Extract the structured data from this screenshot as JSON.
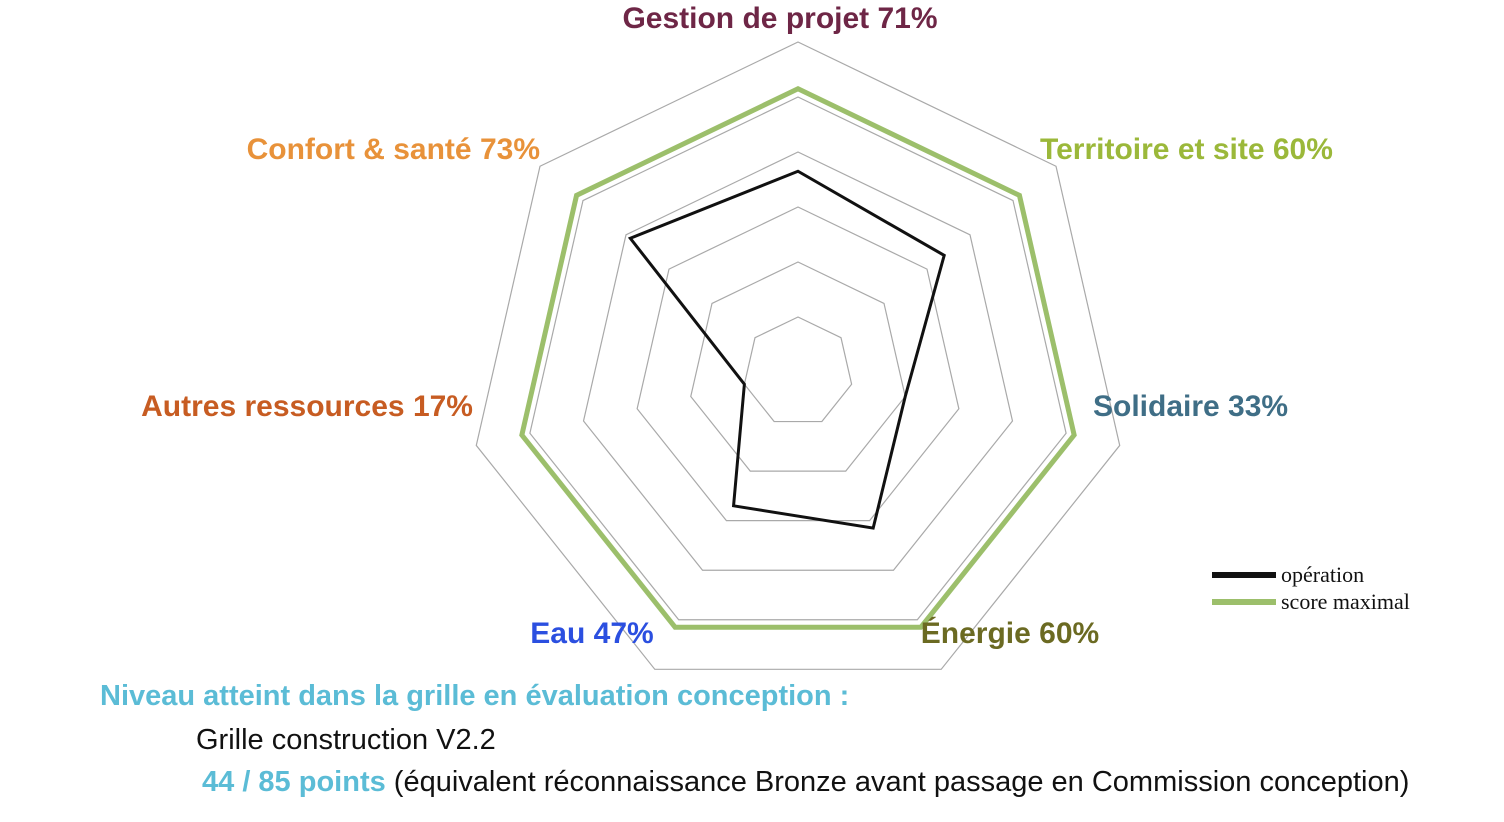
{
  "chart_data": {
    "type": "radar",
    "axes": [
      {
        "name": "Gestion de projet",
        "pct_label": "71%",
        "color": "#6e2646"
      },
      {
        "name": "Territoire et site",
        "pct_label": "60%",
        "color": "#9bb83a"
      },
      {
        "name": "Solidaire",
        "pct_label": "33%",
        "color": "#3f6e86"
      },
      {
        "name": "Énergie",
        "pct_label": "60%",
        "color": "#6b6a22"
      },
      {
        "name": "Eau",
        "pct_label": "47%",
        "color": "#2b4fe0"
      },
      {
        "name": "Autres ressources",
        "pct_label": "17%",
        "color": "#c75c22"
      },
      {
        "name": "Confort & santé",
        "pct_label": "73%",
        "color": "#e8923a"
      }
    ],
    "rings": 6,
    "range": [
      0,
      6
    ],
    "series": [
      {
        "name": "opération",
        "color": "#111111",
        "values": [
          3.65,
          3.4,
          2.0,
          3.15,
          2.7,
          1.0,
          3.9
        ]
      },
      {
        "name": "score maximal",
        "color": "#9cbf6b",
        "values": [
          5.15,
          5.15,
          5.15,
          5.15,
          5.15,
          5.15,
          5.15
        ]
      }
    ],
    "legend_position": "bottom-right"
  },
  "footer": {
    "heading": "Niveau atteint dans la grille en évaluation conception :",
    "grid_version": "Grille construction V2.2",
    "points": "44 / 85 points",
    "equivalence": " (équivalent réconnaissance Bronze avant passage en Commission conception)"
  }
}
